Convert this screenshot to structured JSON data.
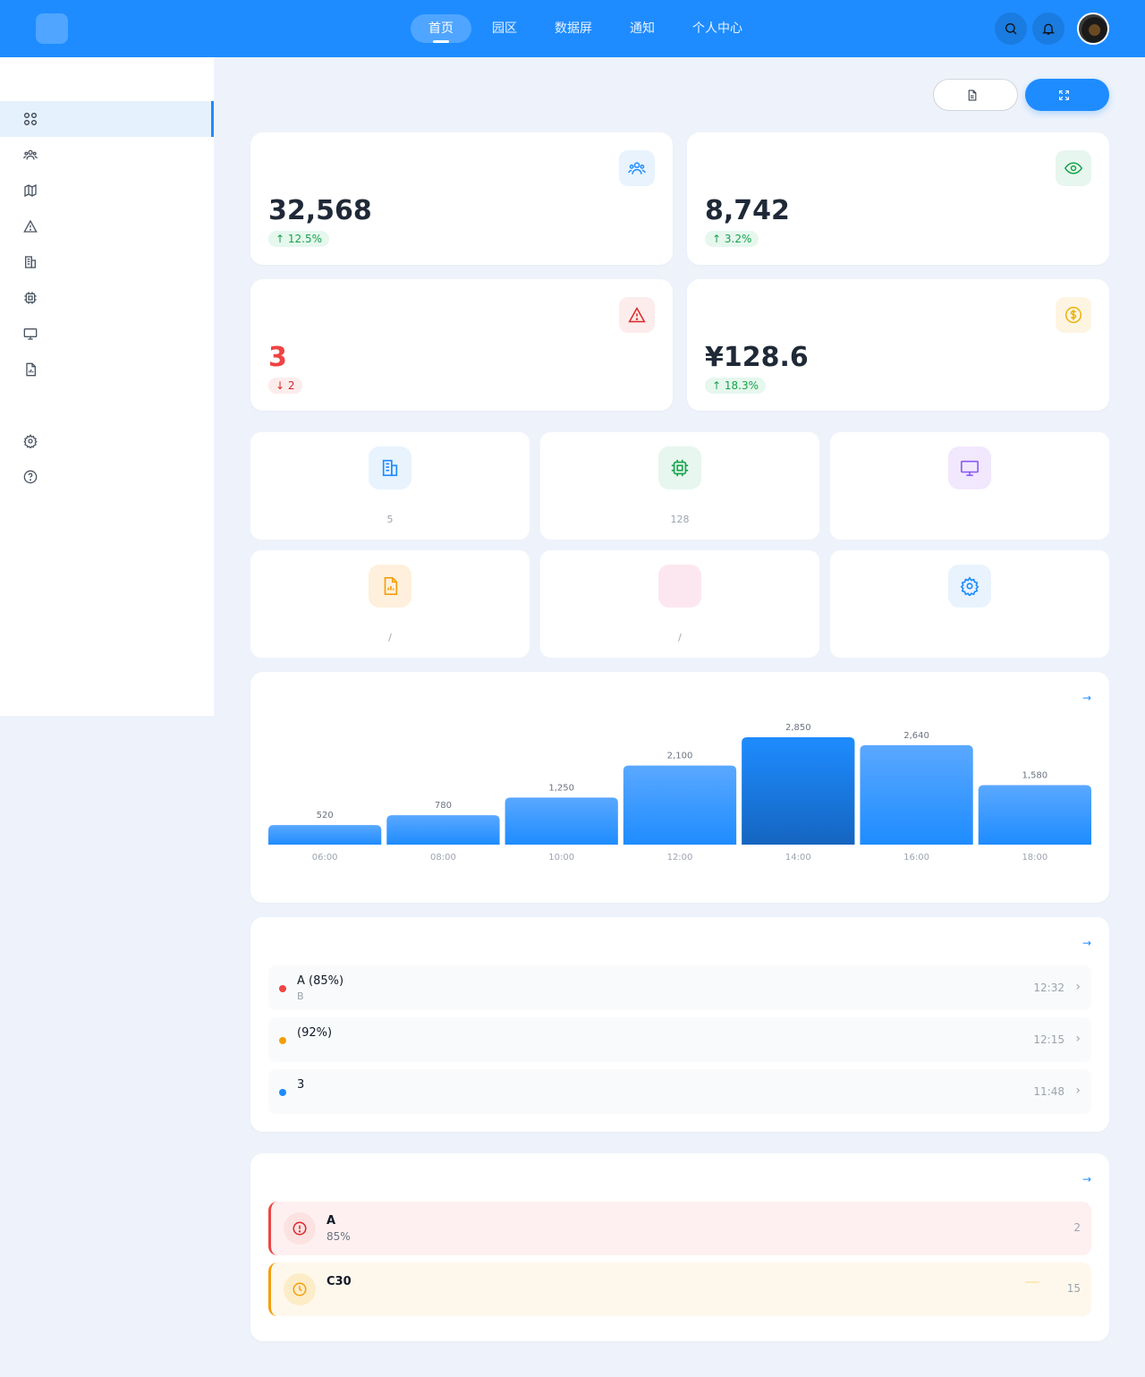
{
  "header": {
    "logo_glyph": "",
    "brand": "",
    "nav": [
      {
        "label": "首页",
        "active": true
      },
      {
        "label": "园区"
      },
      {
        "label": "数据屏"
      },
      {
        "label": "通知"
      },
      {
        "label": "个人中心"
      }
    ],
    "icons": [
      "search-icon",
      "bell-icon"
    ]
  },
  "sidebar": {
    "section": "",
    "items": [
      {
        "label": "",
        "icon": "dashboard-icon",
        "active": true
      },
      {
        "label": "",
        "icon": "users-icon"
      },
      {
        "label": "",
        "icon": "map-icon"
      },
      {
        "label": "",
        "icon": "warning-icon"
      },
      {
        "label": "",
        "icon": "building-icon"
      },
      {
        "label": "",
        "icon": "chip-icon"
      },
      {
        "label": "",
        "icon": "monitor-icon"
      },
      {
        "label": "",
        "icon": "report-icon"
      },
      {
        "label": "",
        "icon": "blank-icon"
      },
      {
        "label": "",
        "icon": "gear-icon"
      },
      {
        "label": "",
        "icon": "help-icon"
      }
    ]
  },
  "page": {
    "title": "",
    "subtitle": "",
    "export_label": "",
    "fullscreen_label": ""
  },
  "stats": [
    {
      "label": "",
      "value": "32,568",
      "badge": "↑ 12.5% ",
      "trend": "up",
      "icon": "users-icon",
      "color": "#1e8cff",
      "bg": "#e8f3fe"
    },
    {
      "label": "",
      "value": "8,742",
      "badge": "↑ 3.2% ",
      "trend": "up",
      "icon": "eye-icon",
      "color": "#16a34a",
      "bg": "#e7f6ee"
    },
    {
      "label": "",
      "value": "3",
      "badge": "↓ 2",
      "trend": "down",
      "icon": "warning-icon",
      "color": "#dc2626",
      "bg": "#fdecec"
    },
    {
      "label": "",
      "value": "¥128.6",
      "badge": "↑ 18.3% ",
      "trend": "up",
      "icon": "dollar-icon",
      "color": "#eab308",
      "bg": "#fef4e2"
    }
  ],
  "tiles": [
    {
      "name": "",
      "desc": "5",
      "icon": "building-icon",
      "color": "#1e8cff",
      "bg": "#e8f3fe"
    },
    {
      "name": "",
      "desc": "128",
      "icon": "chip-icon",
      "color": "#16a34a",
      "bg": "#e7f6ee"
    },
    {
      "name": "",
      "desc": "",
      "icon": "monitor-icon",
      "color": "#8b5cf6",
      "bg": "#f2e8fd"
    },
    {
      "name": "",
      "desc": "/",
      "icon": "report-icon",
      "color": "#f59e0b",
      "bg": "#fef0dc"
    },
    {
      "name": "",
      "desc": "/",
      "icon": "blank-icon",
      "color": "#ec4899",
      "bg": "#fce7f0"
    },
    {
      "name": "",
      "desc": "",
      "icon": "gear-icon",
      "color": "#1e8cff",
      "bg": "#e8f3fe"
    }
  ],
  "chart_section": {
    "title": " ",
    "link": " →"
  },
  "chart_data": {
    "type": "bar",
    "categories": [
      "06:00",
      "08:00",
      "10:00",
      "12:00",
      "14:00",
      "16:00",
      "18:00"
    ],
    "values": [
      520,
      780,
      1250,
      2100,
      2850,
      2640,
      1580
    ],
    "value_labels": [
      "520",
      "780",
      "1,250",
      "2,100",
      "2,850",
      "2,640",
      "1,580"
    ],
    "highlight_index": 4,
    "ylim": [
      0,
      3000
    ],
    "grid": false,
    "legend": "none"
  },
  "notices": {
    "title": " ",
    "link": " →",
    "items": [
      {
        "title": "A (85%)",
        "desc": "B",
        "time": "12:32",
        "color": "#ef4444"
      },
      {
        "title": " (92%)",
        "desc": "",
        "time": "12:15",
        "color": "#f59e0b"
      },
      {
        "title": "3",
        "desc": "",
        "time": "11:48",
        "color": "#1e8cff"
      }
    ]
  },
  "alerts": {
    "title": " ",
    "link": " →",
    "items": [
      {
        "title": "A",
        "desc": " 85%",
        "level": "",
        "time": "2",
        "color": "#ef4444",
        "bg": "#fef0f0",
        "icon": "alert-circle-icon"
      },
      {
        "title": "C30",
        "desc": "",
        "level": "",
        "time": "15",
        "color": "#f59e0b",
        "bg": "#fef8ec",
        "icon": "clock-icon"
      }
    ]
  }
}
